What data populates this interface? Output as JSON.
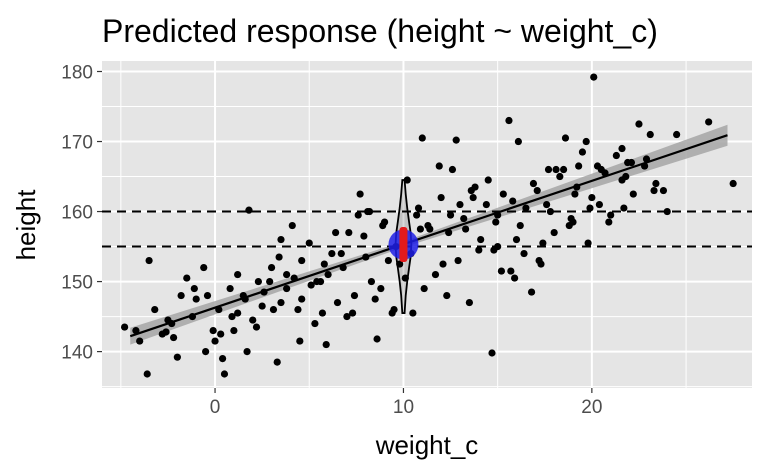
{
  "chart_data": {
    "type": "scatter",
    "title": "Predicted response (height ~ weight_c)",
    "xlabel": "weight_c",
    "ylabel": "height",
    "xlim": [
      -6,
      28.5
    ],
    "ylim": [
      134.8,
      181.5
    ],
    "x_ticks": [
      0,
      10,
      20
    ],
    "x_tick_labels": [
      "0",
      "10",
      "20"
    ],
    "x_minor_ticks": [
      -5,
      5,
      15,
      25
    ],
    "y_ticks": [
      140,
      150,
      160,
      170,
      180
    ],
    "y_tick_labels": [
      "140",
      "150",
      "160",
      "170",
      "180"
    ],
    "y_minor_ticks": [
      135,
      145,
      155,
      165,
      175
    ],
    "grid": true,
    "colors": {
      "panel_background": "#e5e5e5",
      "grid": "#ffffff",
      "points": "#000000",
      "fit_line": "#000000",
      "confidence_band": "#a6a6a6",
      "predicted_point": "#1f1fe6",
      "prediction_interval": "#e31a1c",
      "reference_lines": "#000000"
    },
    "fit_line": {
      "x": [
        -4.5,
        27.2
      ],
      "y": [
        142.2,
        170.9
      ]
    },
    "confidence_band": {
      "x": [
        -4.5,
        10,
        27.2
      ],
      "lower": [
        141.0,
        154.9,
        169.4
      ],
      "upper": [
        143.4,
        155.7,
        172.4
      ]
    },
    "reference_lines": [
      155,
      160
    ],
    "predicted_point": {
      "x": 10,
      "y": 155.3
    },
    "prediction_interval": {
      "x": 10,
      "y": [
        152.8,
        157.8
      ]
    },
    "predictive_density": {
      "x_center": 10,
      "y": [
        145.5,
        148,
        150,
        152,
        153.5,
        155.3,
        157,
        158.5,
        160.5,
        162.5,
        164.5
      ],
      "half_width": [
        0.06,
        0.12,
        0.2,
        0.3,
        0.38,
        0.42,
        0.38,
        0.3,
        0.2,
        0.12,
        0.06
      ]
    },
    "points": {
      "x": [
        -4.8,
        -4.0,
        -3.6,
        -3.5,
        -2.8,
        -2.6,
        -2.3,
        -2.2,
        -2.0,
        -1.5,
        -1.2,
        -1.0,
        -0.6,
        -0.4,
        -0.1,
        0.2,
        0.5,
        0.8,
        1.0,
        1.2,
        1.5,
        1.8,
        2.0,
        2.3,
        2.6,
        3.0,
        3.3,
        3.5,
        3.8,
        4.1,
        4.4,
        4.6,
        5.0,
        5.3,
        5.6,
        5.9,
        6.2,
        6.5,
        6.8,
        7.1,
        7.4,
        7.7,
        8.0,
        8.3,
        8.6,
        8.9,
        9.2,
        9.5,
        9.8,
        10.2,
        10.5,
        10.8,
        11.1,
        11.4,
        11.7,
        12.0,
        12.3,
        12.6,
        12.9,
        13.2,
        13.5,
        13.8,
        14.1,
        14.4,
        14.7,
        15.0,
        15.3,
        15.6,
        15.9,
        16.2,
        16.5,
        16.8,
        17.1,
        17.4,
        17.7,
        18.0,
        18.3,
        18.6,
        18.9,
        19.2,
        19.5,
        19.8,
        20.1,
        20.4,
        20.7,
        21.0,
        21.3,
        21.6,
        21.9,
        22.2,
        22.5,
        22.8,
        23.1,
        23.4,
        24.0,
        24.5,
        26.2,
        27.5,
        -0.5,
        1.2,
        3.5,
        6.0,
        8.5,
        11.0,
        13.0,
        14.8,
        16.0,
        19.0,
        20.0,
        23.8,
        0.4,
        2.2,
        4.6,
        7.3,
        9.0,
        12.4,
        15.2,
        17.2,
        18.8,
        21.6,
        -3.2,
        -1.8,
        0.0,
        1.6,
        2.9,
        4.2,
        5.4,
        6.7,
        7.9,
        9.4,
        10.7,
        11.9,
        13.3,
        14.5,
        15.7,
        16.9,
        18.1,
        19.3,
        20.5,
        21.7,
        22.9,
        2.5,
        3.8,
        5.1,
        6.4,
        7.6,
        8.8,
        10.1,
        11.3,
        12.5,
        13.7,
        14.9,
        16.1,
        17.3,
        18.5,
        19.7,
        20.9,
        22.1,
        -4.2,
        -2.5,
        -1.1,
        0.3,
        1.7,
        3.1,
        4.5,
        5.8,
        7.0,
        8.2,
        9.6,
        10.9,
        12.1,
        13.6,
        15.0,
        16.4,
        17.8,
        19.1,
        20.3,
        21.8,
        23.3,
        0.9,
        3.4,
        5.7,
        8.1,
        10.4,
        12.8,
        14.0,
        15.8,
        17.6,
        19.9
      ],
      "y": [
        143.5,
        141.5,
        136.8,
        153.0,
        142.5,
        142.8,
        144.0,
        142.0,
        139.2,
        150.5,
        145.0,
        147.5,
        152.0,
        148.0,
        143.0,
        146.0,
        136.8,
        149.0,
        143.0,
        151.0,
        148.0,
        160.2,
        144.5,
        150.0,
        148.5,
        152.0,
        138.5,
        156.0,
        149.0,
        158.0,
        146.0,
        153.0,
        155.5,
        144.0,
        150.0,
        141.0,
        154.0,
        147.0,
        152.0,
        157.0,
        148.0,
        162.5,
        153.5,
        150.0,
        141.8,
        158.0,
        153.0,
        146.0,
        152.5,
        164.5,
        145.5,
        160.5,
        149.0,
        157.5,
        151.0,
        162.0,
        148.0,
        166.0,
        153.0,
        159.0,
        147.0,
        163.5,
        156.0,
        161.0,
        139.8,
        155.0,
        162.5,
        173.0,
        150.5,
        158.0,
        160.5,
        148.5,
        163.0,
        155.5,
        166.0,
        157.0,
        165.0,
        170.5,
        159.0,
        163.5,
        168.5,
        155.5,
        179.2,
        161.0,
        165.5,
        159.5,
        168.0,
        164.5,
        167.0,
        162.5,
        172.5,
        166.5,
        171.0,
        164.0,
        160.0,
        171.0,
        172.8,
        164.0,
        140.0,
        145.5,
        147.0,
        151.0,
        147.5,
        170.5,
        161.0,
        154.5,
        156.0,
        158.5,
        162.0,
        163.0,
        139.0,
        143.5,
        147.5,
        145.5,
        158.5,
        157.0,
        151.5,
        153.0,
        158.0,
        169.0,
        146.0,
        148.0,
        141.5,
        147.5,
        150.0,
        150.5,
        150.0,
        154.0,
        156.5,
        145.5,
        159.5,
        166.5,
        157.5,
        164.5,
        151.5,
        164.0,
        166.0,
        166.5,
        166.0,
        160.5,
        167.5,
        146.5,
        151.0,
        149.5,
        157.0,
        159.5,
        149.0,
        150.5,
        158.0,
        159.5,
        162.0,
        158.5,
        170.0,
        152.5,
        166.0,
        170.0,
        158.5,
        167.0,
        143.0,
        144.5,
        149.0,
        142.5,
        140.0,
        146.0,
        141.5,
        152.5,
        145.0,
        160.0,
        155.0,
        157.5,
        152.5,
        163.0,
        159.5,
        154.0,
        160.0,
        162.5,
        166.5,
        165.0,
        163.0,
        145.0,
        153.5,
        145.5,
        160.0,
        154.0,
        170.2,
        154.5,
        161.5,
        161.0,
        160.5
      ]
    }
  }
}
